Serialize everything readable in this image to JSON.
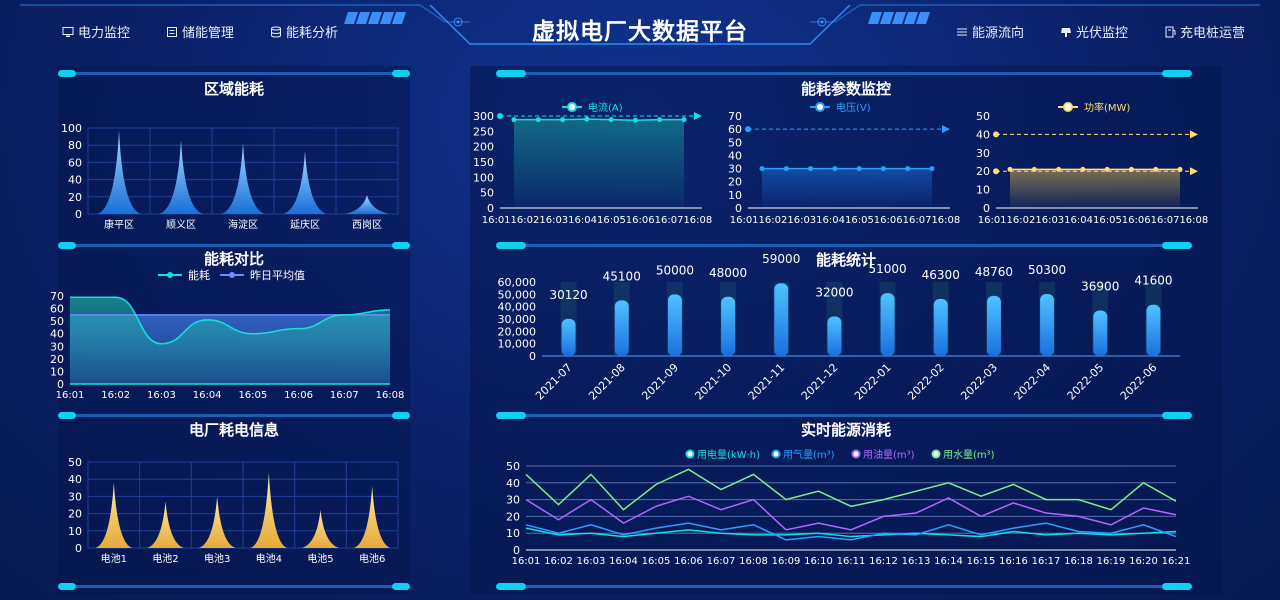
{
  "header": {
    "title": "虚拟电厂大数据平台",
    "nav_left": [
      {
        "label": "电力监控",
        "icon": "monitor-icon"
      },
      {
        "label": "储能管理",
        "icon": "storage-icon"
      },
      {
        "label": "能耗分析",
        "icon": "database-icon"
      }
    ],
    "nav_right": [
      {
        "label": "能源流向",
        "icon": "flow-icon"
      },
      {
        "label": "光伏监控",
        "icon": "solar-icon"
      },
      {
        "label": "充电桩运营",
        "icon": "charger-icon"
      }
    ]
  },
  "panels": {
    "region": "区域能耗",
    "compare": "能耗对比",
    "plant": "电厂耗电信息",
    "params": "能耗参数监控",
    "stats": "能耗统计",
    "realtime": "实时能源消耗"
  },
  "chart_data": [
    {
      "id": "region",
      "type": "bar",
      "categories": [
        "康平区",
        "顺义区",
        "海淀区",
        "延庆区",
        "西岗区"
      ],
      "values": [
        97,
        86,
        83,
        73,
        22
      ],
      "ylim": [
        0,
        100
      ],
      "yticks": [
        0,
        20,
        40,
        60,
        80,
        100
      ]
    },
    {
      "id": "compare",
      "type": "line",
      "x": [
        "16:01",
        "16:02",
        "16:03",
        "16:04",
        "16:05",
        "16:06",
        "16:07",
        "16:08"
      ],
      "series": [
        {
          "name": "能耗",
          "values": [
            69,
            69,
            32,
            51,
            40,
            44,
            55,
            59
          ]
        },
        {
          "name": "昨日平均值",
          "values": [
            55,
            55,
            55,
            55,
            55,
            55,
            55,
            55
          ]
        }
      ],
      "ylim": [
        0,
        70
      ],
      "yticks": [
        0,
        10,
        20,
        30,
        40,
        50,
        60,
        70
      ]
    },
    {
      "id": "plant",
      "type": "bar",
      "categories": [
        "电池1",
        "电池2",
        "电池3",
        "电池4",
        "电池5",
        "电池6"
      ],
      "values": [
        38,
        27,
        30,
        44,
        22,
        36
      ],
      "ylim": [
        0,
        50
      ],
      "yticks": [
        0,
        10,
        20,
        30,
        40,
        50
      ]
    },
    {
      "id": "current",
      "type": "line",
      "x": [
        "16:01",
        "16:02",
        "16:03",
        "16:04",
        "16:05",
        "16:06",
        "16:07",
        "16:08"
      ],
      "series": [
        {
          "name": "电流(A)",
          "values": [
            288,
            288,
            288,
            290,
            288,
            286,
            288,
            288
          ]
        }
      ],
      "markline": 300,
      "ylim": [
        0,
        300
      ],
      "yticks": [
        0,
        50,
        100,
        150,
        200,
        250,
        300
      ]
    },
    {
      "id": "voltage",
      "type": "line",
      "x": [
        "16:01",
        "16:02",
        "16:03",
        "16:04",
        "16:05",
        "16:06",
        "16:07",
        "16:08"
      ],
      "series": [
        {
          "name": "电压(V)",
          "values": [
            30,
            30,
            30,
            30,
            30,
            30,
            30,
            30
          ]
        }
      ],
      "markline": 60,
      "ylim": [
        0,
        70
      ],
      "yticks": [
        0,
        10,
        20,
        30,
        40,
        50,
        60,
        70
      ]
    },
    {
      "id": "power",
      "type": "line",
      "x": [
        "16:01",
        "16:02",
        "16:03",
        "16:04",
        "16:05",
        "16:06",
        "16:07",
        "16:08"
      ],
      "series": [
        {
          "name": "功率(MW)",
          "values": [
            21,
            21,
            21,
            21,
            21,
            21,
            21,
            21
          ]
        }
      ],
      "markline": 40,
      "markline2": 20,
      "ylim": [
        0,
        50
      ],
      "yticks": [
        0,
        10,
        20,
        30,
        40,
        50
      ]
    },
    {
      "id": "stats",
      "type": "bar",
      "categories": [
        "2021-07",
        "2021-08",
        "2021-09",
        "2021-10",
        "2021-11",
        "2021-12",
        "2022-01",
        "2022-02",
        "2022-03",
        "2022-04",
        "2022-05",
        "2022-06"
      ],
      "values": [
        30120,
        45100,
        50000,
        48000,
        59000,
        32000,
        51000,
        46300,
        48760,
        50300,
        36900,
        41600
      ],
      "ylim": [
        0,
        60000
      ],
      "yticks": [
        0,
        10000,
        20000,
        30000,
        40000,
        50000,
        60000
      ],
      "ytick_labels": [
        "0",
        "10,000",
        "20,000",
        "30,000",
        "40,000",
        "50,000",
        "60,000"
      ]
    },
    {
      "id": "realtime",
      "type": "line",
      "x": [
        "16:01",
        "16:02",
        "16:03",
        "16:04",
        "16:05",
        "16:06",
        "16:07",
        "16:08",
        "16:09",
        "16:10",
        "16:11",
        "16:12",
        "16:13",
        "16:14",
        "16:15",
        "16:16",
        "16:17",
        "16:18",
        "16:19",
        "16:20",
        "16:21"
      ],
      "series": [
        {
          "name": "用电量(kW·h)",
          "values": [
            13,
            9,
            10,
            8,
            10,
            12,
            10,
            9,
            9,
            10,
            8,
            9,
            10,
            9,
            8,
            11,
            9,
            10,
            9,
            10,
            11
          ]
        },
        {
          "name": "用气量(m³)",
          "values": [
            15,
            10,
            15,
            9,
            13,
            16,
            12,
            15,
            6,
            8,
            6,
            10,
            9,
            15,
            9,
            13,
            16,
            11,
            10,
            15,
            8
          ]
        },
        {
          "name": "用油量(m³)",
          "values": [
            30,
            18,
            30,
            16,
            26,
            32,
            24,
            30,
            12,
            16,
            12,
            20,
            22,
            31,
            20,
            28,
            22,
            20,
            15,
            25,
            21
          ]
        },
        {
          "name": "用水量(m³)",
          "values": [
            45,
            27,
            45,
            24,
            39,
            48,
            36,
            45,
            30,
            35,
            26,
            30,
            35,
            40,
            32,
            39,
            30,
            30,
            24,
            40,
            29
          ]
        }
      ],
      "ylim": [
        0,
        50
      ],
      "yticks": [
        0,
        10,
        20,
        30,
        40,
        50
      ]
    }
  ],
  "colors": {
    "cyan": "#14e0e0",
    "blue": "#3a7bd5",
    "light_blue": "#29a0ff",
    "yellow": "#ffdb70",
    "purple": "#b266ff",
    "green": "#7cf08a"
  }
}
